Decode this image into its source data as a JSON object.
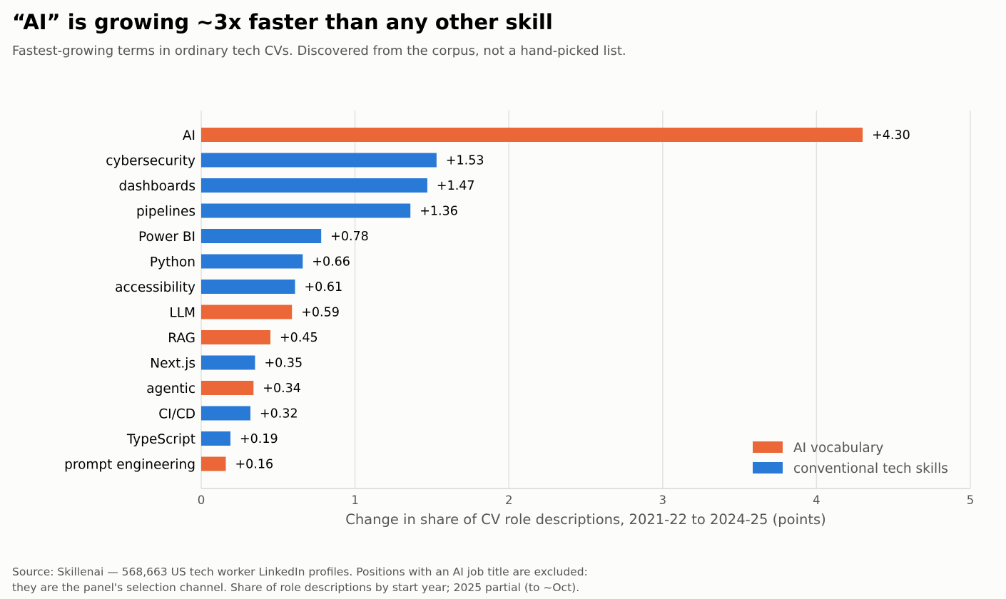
{
  "header": {
    "title": "“AI” is growing ~3x faster than any other skill",
    "subtitle": "Fastest-growing terms in ordinary tech CVs. Discovered from the corpus, not a hand-picked list."
  },
  "footer": {
    "source": "Source: Skillenai — 568,663 US tech worker LinkedIn profiles. Positions with an AI job title are excluded:\nthey are the panel's selection channel. Share of role descriptions by start year; 2025 partial (to ~Oct)."
  },
  "colors": {
    "ai": "#eb6737",
    "conventional": "#2979d6",
    "grid": "#e2e2e2",
    "axis_text": "#555555"
  },
  "chart_data": {
    "type": "bar",
    "orientation": "horizontal",
    "categories": [
      "AI",
      "cybersecurity",
      "dashboards",
      "pipelines",
      "Power BI",
      "Python",
      "accessibility",
      "LLM",
      "RAG",
      "Next.js",
      "agentic",
      "CI/CD",
      "TypeScript",
      "prompt engineering"
    ],
    "values": [
      4.3,
      1.53,
      1.47,
      1.36,
      0.78,
      0.66,
      0.61,
      0.59,
      0.45,
      0.35,
      0.34,
      0.32,
      0.19,
      0.16
    ],
    "value_labels": [
      "+4.30",
      "+1.53",
      "+1.47",
      "+1.36",
      "+0.78",
      "+0.66",
      "+0.61",
      "+0.59",
      "+0.45",
      "+0.35",
      "+0.34",
      "+0.32",
      "+0.19",
      "+0.16"
    ],
    "groups": [
      "ai",
      "conventional",
      "conventional",
      "conventional",
      "conventional",
      "conventional",
      "conventional",
      "ai",
      "ai",
      "conventional",
      "ai",
      "conventional",
      "conventional",
      "ai"
    ],
    "legend": [
      {
        "key": "ai",
        "label": "AI vocabulary"
      },
      {
        "key": "conventional",
        "label": "conventional tech skills"
      }
    ],
    "legend_position": "bottom-right",
    "xlabel": "Change in share of CV role descriptions, 2021-22 to 2024-25 (points)",
    "ylabel": "",
    "xlim": [
      0,
      5
    ],
    "xticks": [
      "0",
      "1",
      "2",
      "3",
      "4",
      "5"
    ],
    "grid": "vertical"
  }
}
